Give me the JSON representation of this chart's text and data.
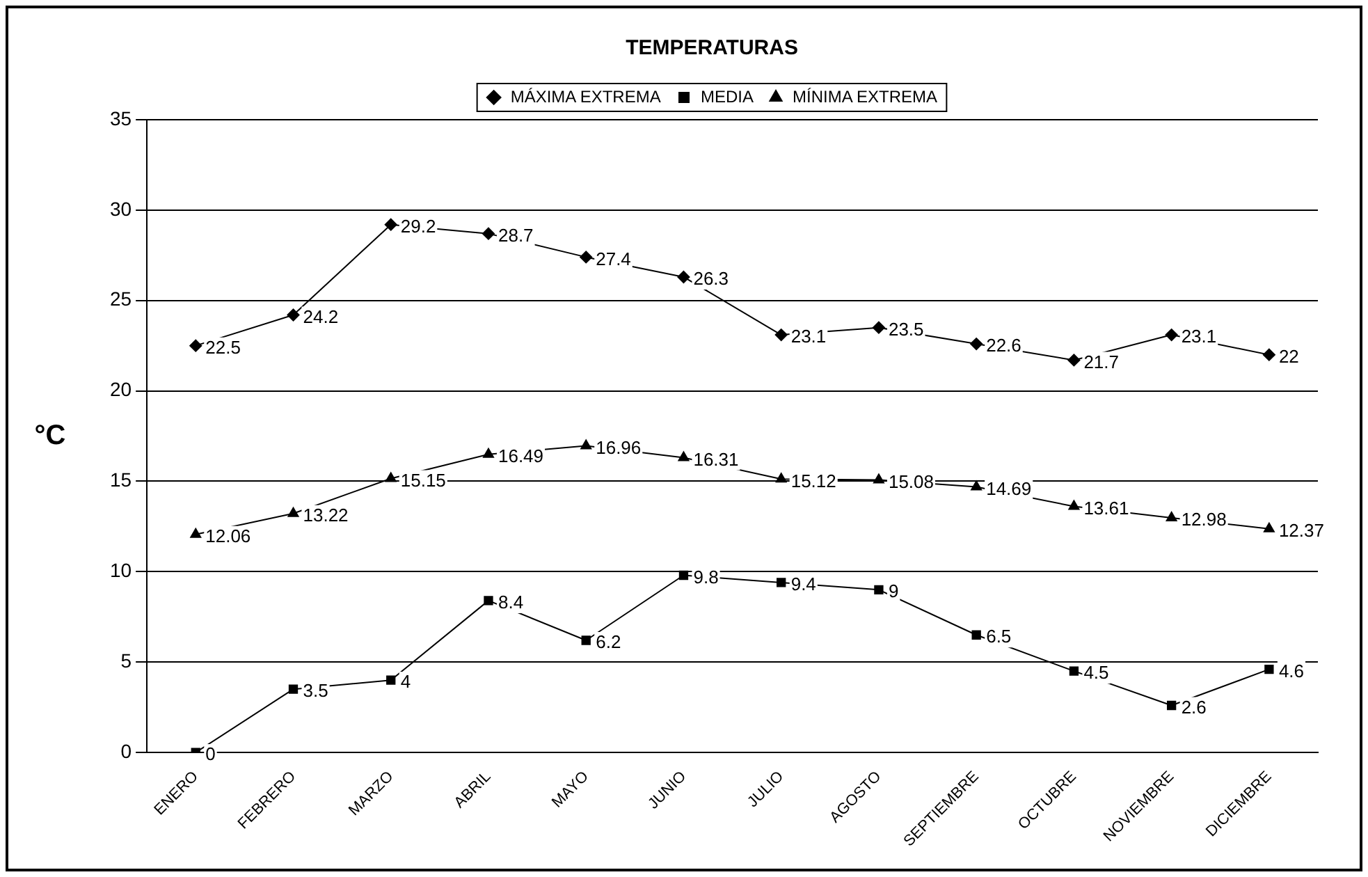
{
  "chart_data": {
    "type": "line",
    "title": "TEMPERATURAS",
    "ylabel": "°C",
    "categories": [
      "ENERO",
      "FEBRERO",
      "MARZO",
      "ABRIL",
      "MAYO",
      "JUNIO",
      "JULIO",
      "AGOSTO",
      "SEPTIEMBRE",
      "OCTUBRE",
      "NOVIEMBRE",
      "DICIEMBRE"
    ],
    "series": [
      {
        "name": "MÁXIMA EXTREMA",
        "color": "#000000",
        "marker": "diamond",
        "values": [
          22.5,
          24.2,
          29.2,
          28.7,
          27.4,
          26.3,
          23.1,
          23.5,
          22.6,
          21.7,
          23.1,
          22
        ]
      },
      {
        "name": "MEDIA",
        "color": "#000000",
        "marker": "square",
        "values": [
          0,
          3.5,
          4,
          8.4,
          6.2,
          9.8,
          9.4,
          9,
          6.5,
          4.5,
          2.6,
          4.6
        ]
      },
      {
        "name": "MÍNIMA EXTREMA",
        "color": "#000000",
        "marker": "triangle",
        "values": [
          12.06,
          13.22,
          15.15,
          16.49,
          16.96,
          16.31,
          15.12,
          15.08,
          14.69,
          13.61,
          12.98,
          12.37
        ]
      }
    ],
    "ylim": [
      0,
      35
    ],
    "yticks": [
      0,
      5,
      10,
      15,
      20,
      25,
      30,
      35
    ],
    "grid": "y",
    "legend": "top",
    "data_labels": true,
    "line_style": "solid"
  }
}
